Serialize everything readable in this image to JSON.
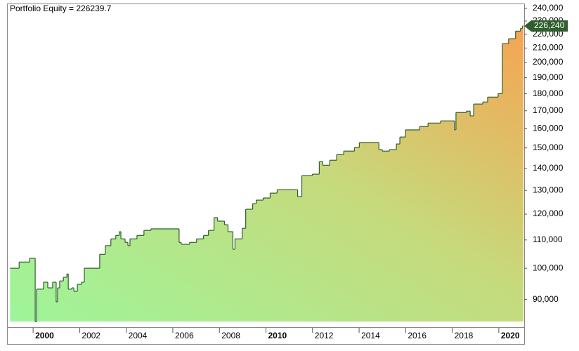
{
  "chart_data": {
    "type": "step-area",
    "title": "Portfolio Equity = 226239.7",
    "x": [
      1999.01,
      1999.4,
      1999.85,
      2000.09,
      2000.15,
      2000.45,
      2000.63,
      2000.84,
      2000.99,
      2001.05,
      2001.14,
      2001.3,
      2001.45,
      2001.51,
      2001.66,
      2001.75,
      2001.9,
      2002.08,
      2002.2,
      2002.86,
      2003.1,
      2003.34,
      2003.55,
      2003.7,
      2003.77,
      2003.95,
      2004.07,
      2004.16,
      2004.46,
      2004.76,
      2005.06,
      2006.27,
      2006.36,
      2006.72,
      2007.02,
      2007.32,
      2007.53,
      2007.77,
      2007.92,
      2008.22,
      2008.37,
      2008.58,
      2008.67,
      2008.98,
      2009.13,
      2009.43,
      2009.58,
      2009.88,
      2010.18,
      2010.48,
      2011.36,
      2011.54,
      2011.99,
      2012.29,
      2012.44,
      2012.74,
      2013.04,
      2013.34,
      2013.8,
      2014.01,
      2014.85,
      2015.0,
      2015.3,
      2015.6,
      2015.75,
      2015.99,
      2016.6,
      2016.96,
      2017.5,
      2018.1,
      2018.16,
      2018.61,
      2018.77,
      2018.92,
      2019.31,
      2019.52,
      2019.97,
      2020.15,
      2020.42,
      2020.72,
      2020.93,
      2021.02
    ],
    "values": [
      100000,
      102100,
      103400,
      83500,
      93200,
      95400,
      93600,
      95400,
      89300,
      93600,
      95800,
      97000,
      98100,
      93200,
      93600,
      92500,
      94700,
      95400,
      100000,
      104800,
      107900,
      110400,
      111700,
      113100,
      110400,
      109100,
      107900,
      110400,
      111700,
      113600,
      114200,
      109100,
      108400,
      109100,
      110400,
      111700,
      113600,
      118600,
      117200,
      115800,
      113100,
      106600,
      110400,
      114400,
      122000,
      124300,
      125800,
      126700,
      128800,
      130300,
      127300,
      136600,
      137300,
      143200,
      141500,
      143900,
      146700,
      148400,
      150200,
      152700,
      149100,
      148400,
      149100,
      152000,
      155600,
      159400,
      161200,
      163100,
      164300,
      159400,
      169000,
      169800,
      167100,
      173900,
      175100,
      178000,
      180100,
      213100,
      216700,
      222300,
      224400,
      226239.7
    ],
    "value_labels": [
      null,
      null,
      null,
      null,
      null,
      null,
      null,
      null,
      null,
      null,
      null,
      null,
      null,
      null,
      null,
      null,
      null,
      null,
      null,
      null,
      null,
      null,
      null,
      null,
      null,
      null,
      null,
      null,
      null,
      null,
      null,
      null,
      null,
      null,
      null,
      null,
      null,
      null,
      null,
      null,
      null,
      null,
      null,
      null,
      null,
      null,
      null,
      null,
      null,
      null,
      null,
      null,
      null,
      null,
      null,
      null,
      null,
      null,
      null,
      null,
      null,
      null,
      null,
      null,
      null,
      null,
      null,
      null,
      null,
      null,
      null,
      null,
      null,
      null,
      null,
      null,
      null,
      null,
      null,
      null,
      null,
      "226,240"
    ],
    "xlim": [
      1998.88,
      2021.09
    ],
    "xticks": [
      2000,
      2002,
      2004,
      2006,
      2008,
      2010,
      2012,
      2014,
      2016,
      2018,
      2020
    ],
    "ylim": [
      82000,
      244000
    ],
    "log_scale": true,
    "yticks": [
      {
        "value": 90000,
        "label": "90,000"
      },
      {
        "value": 100000,
        "label": "100,000"
      },
      {
        "value": 110000,
        "label": "110,000"
      },
      {
        "value": 120000,
        "label": "120,000"
      },
      {
        "value": 130000,
        "label": "130,000"
      },
      {
        "value": 140000,
        "label": "140,000"
      },
      {
        "value": 150000,
        "label": "150,000"
      },
      {
        "value": 160000,
        "label": "160,000"
      },
      {
        "value": 170000,
        "label": "170,000"
      },
      {
        "value": 180000,
        "label": "180,000"
      },
      {
        "value": 190000,
        "label": "190,000"
      },
      {
        "value": 200000,
        "label": "200,000"
      },
      {
        "value": 210000,
        "label": "210,000"
      },
      {
        "value": 220000,
        "label": "220,000"
      },
      {
        "value": 230000,
        "label": "230,000"
      },
      {
        "value": 240000,
        "label": "240,000"
      }
    ],
    "color": "#2f5e2f"
  }
}
